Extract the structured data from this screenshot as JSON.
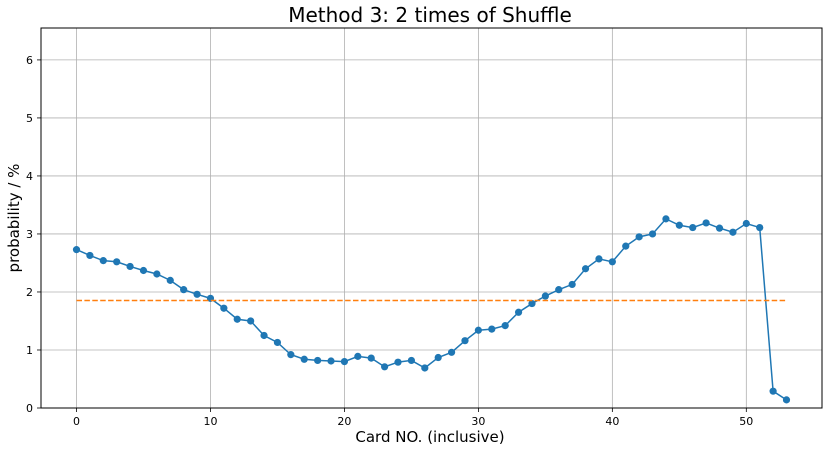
{
  "chart_data": {
    "type": "line",
    "title": "Method 3: 2 times of Shuffle",
    "xlabel": "Card NO. (inclusive)",
    "ylabel": "probability / %",
    "xlim": [
      -2.65,
      55.65
    ],
    "ylim": [
      0,
      6.55
    ],
    "xticks": [
      0,
      10,
      20,
      30,
      40,
      50
    ],
    "yticks": [
      0,
      1,
      2,
      3,
      4,
      5,
      6
    ],
    "grid": true,
    "series": [
      {
        "color": "#1f77b4",
        "style": "solid",
        "marker": "circle",
        "x": [
          0,
          1,
          2,
          3,
          4,
          5,
          6,
          7,
          8,
          9,
          10,
          11,
          12,
          13,
          14,
          15,
          16,
          17,
          18,
          19,
          20,
          21,
          22,
          23,
          24,
          25,
          26,
          27,
          28,
          29,
          30,
          31,
          32,
          33,
          34,
          35,
          36,
          37,
          38,
          39,
          40,
          41,
          42,
          43,
          44,
          45,
          46,
          47,
          48,
          49,
          50,
          51,
          52,
          53
        ],
        "values": [
          2.73,
          2.63,
          2.54,
          2.52,
          2.44,
          2.37,
          2.31,
          2.2,
          2.04,
          1.96,
          1.89,
          1.72,
          1.53,
          1.5,
          1.25,
          1.13,
          0.92,
          0.84,
          0.82,
          0.81,
          0.8,
          0.89,
          0.86,
          0.71,
          0.79,
          0.82,
          0.69,
          0.87,
          0.96,
          1.16,
          1.34,
          1.36,
          1.42,
          1.65,
          1.8,
          1.93,
          2.04,
          2.13,
          2.4,
          2.57,
          2.52,
          2.79,
          2.95,
          3.0,
          3.26,
          3.15,
          3.11,
          3.19,
          3.1,
          3.03,
          3.18,
          3.11,
          0.29,
          0.14
        ]
      },
      {
        "color": "#ff7f0e",
        "style": "dashed",
        "marker": "none",
        "x": [
          0,
          53
        ],
        "values": [
          1.852,
          1.852
        ]
      }
    ]
  }
}
